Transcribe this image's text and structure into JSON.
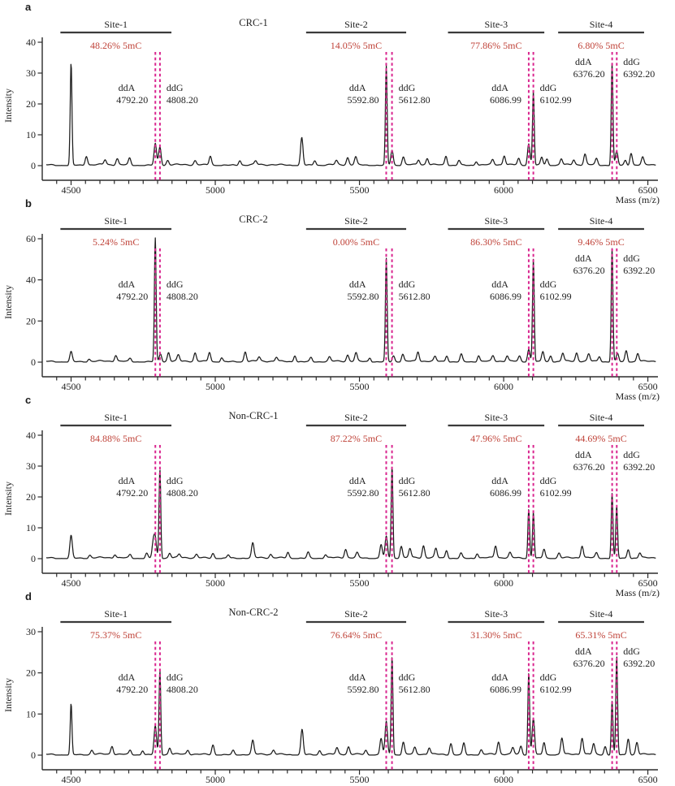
{
  "figure": {
    "xlabel": "Mass (m/z)",
    "ylabel": "Intensity",
    "colors": {
      "trace": "#1c1c1c",
      "axis": "#2b2b2b",
      "text": "#1f1f1f",
      "methylation_red": "#bf4137",
      "dash_pink": "#d9268f",
      "site_bar": "#3a3a3a"
    }
  },
  "chart_data": [
    {
      "type": "line",
      "panel_label": "a",
      "title": "CRC-1",
      "xlabel": "Mass (m/z)",
      "ylabel": "Intensity",
      "xlim": [
        4400,
        6535
      ],
      "ylim": [
        0,
        40
      ],
      "yticks": [
        0,
        10,
        20,
        30,
        40
      ],
      "xticks": [
        4500,
        5000,
        5500,
        6000,
        6500
      ],
      "xtick_minor_step": 50,
      "sites": [
        {
          "name": "Site-1",
          "methylation": "48.26% 5mC",
          "bar": [
            4463,
            4848
          ],
          "ddA": {
            "label": "ddA",
            "mass": "4792.20",
            "x": 4792.2
          },
          "ddG": {
            "label": "ddG",
            "mass": "4808.20",
            "x": 4808.2
          }
        },
        {
          "name": "Site-2",
          "methylation": "14.05% 5mC",
          "bar": [
            5315,
            5662
          ],
          "ddA": {
            "label": "ddA",
            "mass": "5592.80",
            "x": 5592.8
          },
          "ddG": {
            "label": "ddG",
            "mass": "5612.80",
            "x": 5612.8
          }
        },
        {
          "name": "Site-3",
          "methylation": "77.86% 5mC",
          "bar": [
            5807,
            6141
          ],
          "ddA": {
            "label": "ddA",
            "mass": "6086.99",
            "x": 6087.0
          },
          "ddG": {
            "label": "ddG",
            "mass": "6102.99",
            "x": 6103.0
          }
        },
        {
          "name": "Site-4",
          "methylation": "6.80% 5mC",
          "bar": [
            6189,
            6487
          ],
          "ddA": {
            "label": "ddA",
            "mass": "6376.20",
            "x": 6376.2
          },
          "ddG": {
            "label": "ddG",
            "mass": "6392.20",
            "x": 6392.2
          }
        }
      ],
      "peaks": [
        [
          4500,
          33
        ],
        [
          4553,
          3
        ],
        [
          4618,
          1.6
        ],
        [
          4660,
          2
        ],
        [
          4703,
          2.2
        ],
        [
          4792,
          7
        ],
        [
          4808,
          6
        ],
        [
          4835,
          1.5
        ],
        [
          4930,
          1.3
        ],
        [
          4983,
          3
        ],
        [
          5085,
          1.6
        ],
        [
          5140,
          1.2
        ],
        [
          5300,
          9
        ],
        [
          5345,
          1.6
        ],
        [
          5420,
          1.3
        ],
        [
          5459,
          2.3
        ],
        [
          5487,
          2.5
        ],
        [
          5593,
          32
        ],
        [
          5613,
          5
        ],
        [
          5652,
          2.6
        ],
        [
          5705,
          1.6
        ],
        [
          5735,
          2.1
        ],
        [
          5800,
          3
        ],
        [
          5845,
          1.6
        ],
        [
          5905,
          1.3
        ],
        [
          5962,
          1.6
        ],
        [
          6002,
          3
        ],
        [
          6052,
          2
        ],
        [
          6087,
          7
        ],
        [
          6103,
          24
        ],
        [
          6132,
          2.6
        ],
        [
          6150,
          2
        ],
        [
          6200,
          2
        ],
        [
          6243,
          1.6
        ],
        [
          6282,
          3.4
        ],
        [
          6322,
          2
        ],
        [
          6376,
          33
        ],
        [
          6392,
          4.5
        ],
        [
          6422,
          1.6
        ],
        [
          6442,
          4
        ],
        [
          6482,
          2.4
        ]
      ]
    },
    {
      "type": "line",
      "panel_label": "b",
      "title": "CRC-2",
      "xlabel": "Mass (m/z)",
      "ylabel": "Intensity",
      "xlim": [
        4400,
        6535
      ],
      "ylim": [
        0,
        60
      ],
      "yticks": [
        0,
        20,
        40,
        60
      ],
      "xticks": [
        4500,
        5000,
        5500,
        6000,
        6500
      ],
      "xtick_minor_step": 50,
      "sites": [
        {
          "name": "Site-1",
          "methylation": "5.24% 5mC",
          "bar": [
            4463,
            4848
          ],
          "ddA": {
            "label": "ddA",
            "mass": "4792.20",
            "x": 4792.2
          },
          "ddG": {
            "label": "ddG",
            "mass": "4808.20",
            "x": 4808.2
          }
        },
        {
          "name": "Site-2",
          "methylation": "0.00% 5mC",
          "bar": [
            5315,
            5662
          ],
          "ddA": {
            "label": "ddA",
            "mass": "5592.80",
            "x": 5592.8
          },
          "ddG": {
            "label": "ddG",
            "mass": "5612.80",
            "x": 5612.8
          }
        },
        {
          "name": "Site-3",
          "methylation": "86.30% 5mC",
          "bar": [
            5807,
            6141
          ],
          "ddA": {
            "label": "ddA",
            "mass": "6086.99",
            "x": 6087.0
          },
          "ddG": {
            "label": "ddG",
            "mass": "6102.99",
            "x": 6103.0
          }
        },
        {
          "name": "Site-4",
          "methylation": "9.46% 5mC",
          "bar": [
            6189,
            6487
          ],
          "ddA": {
            "label": "ddA",
            "mass": "6376.20",
            "x": 6376.2
          },
          "ddG": {
            "label": "ddG",
            "mass": "6392.20",
            "x": 6392.2
          }
        }
      ],
      "peaks": [
        [
          4500,
          4.8
        ],
        [
          4562,
          1.2
        ],
        [
          4655,
          3
        ],
        [
          4705,
          1.5
        ],
        [
          4792,
          60
        ],
        [
          4810,
          4
        ],
        [
          4838,
          4.4
        ],
        [
          4872,
          3
        ],
        [
          4930,
          4
        ],
        [
          4980,
          4.6
        ],
        [
          5022,
          2
        ],
        [
          5104,
          4.8
        ],
        [
          5152,
          2
        ],
        [
          5212,
          2
        ],
        [
          5276,
          3.2
        ],
        [
          5332,
          2
        ],
        [
          5396,
          2
        ],
        [
          5459,
          3
        ],
        [
          5488,
          4
        ],
        [
          5536,
          2
        ],
        [
          5593,
          50
        ],
        [
          5618,
          3
        ],
        [
          5650,
          3.6
        ],
        [
          5703,
          4.6
        ],
        [
          5762,
          2.2
        ],
        [
          5803,
          3
        ],
        [
          5853,
          3.6
        ],
        [
          5913,
          3
        ],
        [
          5963,
          2.6
        ],
        [
          6012,
          2.6
        ],
        [
          6055,
          2.5
        ],
        [
          6087,
          6
        ],
        [
          6103,
          50
        ],
        [
          6136,
          5
        ],
        [
          6163,
          3
        ],
        [
          6205,
          4
        ],
        [
          6253,
          4
        ],
        [
          6295,
          3.5
        ],
        [
          6332,
          2.5
        ],
        [
          6376,
          55
        ],
        [
          6395,
          4
        ],
        [
          6425,
          5.5
        ],
        [
          6465,
          4
        ]
      ]
    },
    {
      "type": "line",
      "panel_label": "c",
      "title": "Non-CRC-1",
      "xlabel": "Mass (m/z)",
      "ylabel": "Intensity",
      "xlim": [
        4400,
        6535
      ],
      "ylim": [
        0,
        40
      ],
      "yticks": [
        0,
        10,
        20,
        30,
        40
      ],
      "xticks": [
        4500,
        5000,
        5500,
        6000,
        6500
      ],
      "xtick_minor_step": 50,
      "sites": [
        {
          "name": "Site-1",
          "methylation": "84.88% 5mC",
          "bar": [
            4463,
            4848
          ],
          "ddA": {
            "label": "ddA",
            "mass": "4792.20",
            "x": 4792.2
          },
          "ddG": {
            "label": "ddG",
            "mass": "4808.20",
            "x": 4808.2
          }
        },
        {
          "name": "Site-2",
          "methylation": "87.22% 5mC",
          "bar": [
            5315,
            5662
          ],
          "ddA": {
            "label": "ddA",
            "mass": "5592.80",
            "x": 5592.8
          },
          "ddG": {
            "label": "ddG",
            "mass": "5612.80",
            "x": 5612.8
          }
        },
        {
          "name": "Site-3",
          "methylation": "47.96% 5mC",
          "bar": [
            5807,
            6141
          ],
          "ddA": {
            "label": "ddA",
            "mass": "6086.99",
            "x": 6087.0
          },
          "ddG": {
            "label": "ddG",
            "mass": "6102.99",
            "x": 6103.0
          }
        },
        {
          "name": "Site-4",
          "methylation": "44.69% 5mC",
          "bar": [
            6189,
            6487
          ],
          "ddA": {
            "label": "ddA",
            "mass": "6376.20",
            "x": 6376.2
          },
          "ddG": {
            "label": "ddG",
            "mass": "6392.20",
            "x": 6392.2
          }
        }
      ],
      "peaks": [
        [
          4500,
          7.3
        ],
        [
          4565,
          0.9
        ],
        [
          4652,
          1.1
        ],
        [
          4705,
          1.1
        ],
        [
          4762,
          1.6
        ],
        [
          4785,
          5
        ],
        [
          4792,
          6
        ],
        [
          4808,
          29
        ],
        [
          4842,
          1.6
        ],
        [
          4875,
          1.1
        ],
        [
          4935,
          1.1
        ],
        [
          4992,
          1.6
        ],
        [
          5045,
          1.1
        ],
        [
          5130,
          4.7
        ],
        [
          5192,
          1.1
        ],
        [
          5252,
          1.9
        ],
        [
          5322,
          1.9
        ],
        [
          5382,
          1.1
        ],
        [
          5452,
          2.8
        ],
        [
          5492,
          1.6
        ],
        [
          5575,
          4.5
        ],
        [
          5593,
          7
        ],
        [
          5613,
          30
        ],
        [
          5645,
          4
        ],
        [
          5675,
          3
        ],
        [
          5722,
          3.9
        ],
        [
          5765,
          3
        ],
        [
          5802,
          2.6
        ],
        [
          5852,
          1.6
        ],
        [
          5908,
          1.6
        ],
        [
          5972,
          3.9
        ],
        [
          6022,
          1.6
        ],
        [
          6087,
          16
        ],
        [
          6103,
          15
        ],
        [
          6140,
          3
        ],
        [
          6192,
          1.6
        ],
        [
          6272,
          3.9
        ],
        [
          6322,
          1.6
        ],
        [
          6376,
          21
        ],
        [
          6392,
          17
        ],
        [
          6432,
          3
        ],
        [
          6472,
          1.6
        ]
      ]
    },
    {
      "type": "line",
      "panel_label": "d",
      "title": "Non-CRC-2",
      "xlabel": "Mass (m/z)",
      "ylabel": "Intensity",
      "xlim": [
        4400,
        6535
      ],
      "ylim": [
        0,
        30
      ],
      "yticks": [
        0,
        10,
        20,
        30
      ],
      "xticks": [
        4500,
        5000,
        5500,
        6000,
        6500
      ],
      "xtick_minor_step": 50,
      "sites": [
        {
          "name": "Site-1",
          "methylation": "75.37% 5mC",
          "bar": [
            4463,
            4848
          ],
          "ddA": {
            "label": "ddA",
            "mass": "4792.20",
            "x": 4792.2
          },
          "ddG": {
            "label": "ddG",
            "mass": "4808.20",
            "x": 4808.2
          }
        },
        {
          "name": "Site-2",
          "methylation": "76.64% 5mC",
          "bar": [
            5315,
            5662
          ],
          "ddA": {
            "label": "ddA",
            "mass": "5592.80",
            "x": 5592.8
          },
          "ddG": {
            "label": "ddG",
            "mass": "5612.80",
            "x": 5612.8
          }
        },
        {
          "name": "Site-3",
          "methylation": "31.30% 5mC",
          "bar": [
            5807,
            6141
          ],
          "ddA": {
            "label": "ddA",
            "mass": "6086.99",
            "x": 6087.0
          },
          "ddG": {
            "label": "ddG",
            "mass": "6102.99",
            "x": 6103.0
          }
        },
        {
          "name": "Site-4",
          "methylation": "65.31% 5mC",
          "bar": [
            6189,
            6487
          ],
          "ddA": {
            "label": "ddA",
            "mass": "6376.20",
            "x": 6376.2
          },
          "ddG": {
            "label": "ddG",
            "mass": "6392.20",
            "x": 6392.2
          }
        }
      ],
      "peaks": [
        [
          4500,
          12.3
        ],
        [
          4572,
          1
        ],
        [
          4642,
          2
        ],
        [
          4705,
          1
        ],
        [
          4748,
          1.1
        ],
        [
          4792,
          7
        ],
        [
          4808,
          20.5
        ],
        [
          4842,
          1.6
        ],
        [
          4905,
          1
        ],
        [
          4992,
          2.4
        ],
        [
          5062,
          1
        ],
        [
          5130,
          3.3
        ],
        [
          5202,
          1
        ],
        [
          5301,
          6.2
        ],
        [
          5362,
          1
        ],
        [
          5422,
          1.5
        ],
        [
          5462,
          1.8
        ],
        [
          5522,
          1
        ],
        [
          5575,
          4
        ],
        [
          5593,
          8
        ],
        [
          5613,
          24
        ],
        [
          5652,
          3
        ],
        [
          5692,
          1.6
        ],
        [
          5742,
          1.6
        ],
        [
          5817,
          2.8
        ],
        [
          5862,
          2.8
        ],
        [
          5922,
          1.1
        ],
        [
          5982,
          3
        ],
        [
          6032,
          1.6
        ],
        [
          6060,
          2
        ],
        [
          6087,
          20
        ],
        [
          6103,
          9
        ],
        [
          6140,
          3
        ],
        [
          6202,
          4
        ],
        [
          6272,
          4
        ],
        [
          6312,
          2.5
        ],
        [
          6352,
          2
        ],
        [
          6376,
          13
        ],
        [
          6392,
          24
        ],
        [
          6432,
          4
        ],
        [
          6462,
          3
        ]
      ]
    }
  ]
}
